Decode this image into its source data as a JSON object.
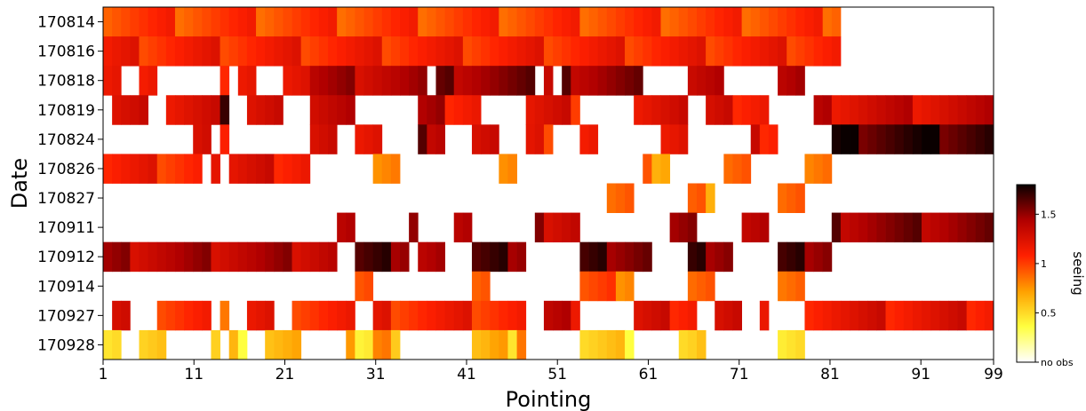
{
  "chart_data": {
    "type": "heatmap",
    "title": "",
    "xlabel": "Pointing",
    "ylabel": "Date",
    "x_tick_labels": [
      "1",
      "11",
      "21",
      "31",
      "41",
      "51",
      "61",
      "71",
      "81",
      "91",
      "99"
    ],
    "x_tick_values": [
      1,
      11,
      21,
      31,
      41,
      51,
      61,
      71,
      81,
      91,
      99
    ],
    "xlim": [
      1,
      99
    ],
    "rows": [
      "170814",
      "170816",
      "170818",
      "170819",
      "170824",
      "170826",
      "170827",
      "170911",
      "170912",
      "170914",
      "170927",
      "170928"
    ],
    "columns_count": 99,
    "colorbar": {
      "label": "seeing",
      "ticks": [
        {
          "value": 0,
          "label": "no obs"
        },
        {
          "value": 0.5,
          "label": "0.5"
        },
        {
          "value": 1,
          "label": "1"
        },
        {
          "value": 1.5,
          "label": "1.5"
        }
      ],
      "vmin": 0,
      "vmax": 1.8,
      "colormap": "hot_r"
    },
    "values": [
      {
        "date": "170814",
        "segments": [
          [
            1,
            82,
            1.0
          ]
        ]
      },
      {
        "date": "170816",
        "segments": [
          [
            1,
            82,
            1.1
          ]
        ]
      },
      {
        "date": "170818",
        "segments": [
          [
            1,
            2,
            1.3
          ],
          [
            5,
            6,
            1.2
          ],
          [
            14,
            14,
            1.2
          ],
          [
            16,
            17,
            1.3
          ],
          [
            21,
            23,
            1.2
          ],
          [
            24,
            36,
            1.4
          ],
          [
            38,
            48,
            1.5
          ],
          [
            50,
            50,
            1.2
          ],
          [
            52,
            60,
            1.5
          ],
          [
            66,
            69,
            1.4
          ],
          [
            76,
            78,
            1.5
          ]
        ]
      },
      {
        "date": "170819",
        "segments": [
          [
            2,
            5,
            1.2
          ],
          [
            8,
            13,
            1.3
          ],
          [
            14,
            14,
            1.7
          ],
          [
            17,
            20,
            1.2
          ],
          [
            24,
            28,
            1.4
          ],
          [
            36,
            38,
            1.5
          ],
          [
            39,
            42,
            1.1
          ],
          [
            48,
            52,
            1.3
          ],
          [
            53,
            53,
            1.0
          ],
          [
            60,
            65,
            1.3
          ],
          [
            68,
            74,
            1.2
          ],
          [
            80,
            99,
            1.3
          ]
        ]
      },
      {
        "date": "170824",
        "segments": [
          [
            11,
            12,
            1.4
          ],
          [
            14,
            14,
            1.2
          ],
          [
            24,
            26,
            1.4
          ],
          [
            29,
            31,
            1.2
          ],
          [
            36,
            38,
            1.5
          ],
          [
            42,
            44,
            1.3
          ],
          [
            48,
            50,
            1.1
          ],
          [
            54,
            55,
            1.2
          ],
          [
            63,
            65,
            1.3
          ],
          [
            73,
            75,
            1.2
          ],
          [
            82,
            99,
            1.7
          ]
        ]
      },
      {
        "date": "170826",
        "segments": [
          [
            1,
            11,
            1.1
          ],
          [
            13,
            13,
            1.2
          ],
          [
            15,
            23,
            1.2
          ],
          [
            31,
            33,
            0.9
          ],
          [
            45,
            46,
            0.8
          ],
          [
            61,
            63,
            0.8
          ],
          [
            70,
            72,
            0.8
          ],
          [
            79,
            81,
            0.8
          ]
        ]
      },
      {
        "date": "170827",
        "segments": [
          [
            57,
            59,
            1.0
          ],
          [
            66,
            68,
            0.8
          ],
          [
            76,
            78,
            0.8
          ]
        ]
      },
      {
        "date": "170911",
        "segments": [
          [
            27,
            28,
            1.5
          ],
          [
            35,
            35,
            1.4
          ],
          [
            40,
            41,
            1.5
          ],
          [
            49,
            53,
            1.4
          ],
          [
            64,
            66,
            1.5
          ],
          [
            72,
            74,
            1.5
          ],
          [
            82,
            99,
            1.5
          ]
        ]
      },
      {
        "date": "170912",
        "segments": [
          [
            1,
            26,
            1.4
          ],
          [
            29,
            34,
            1.6
          ],
          [
            36,
            38,
            1.5
          ],
          [
            42,
            47,
            1.6
          ],
          [
            54,
            61,
            1.6
          ],
          [
            66,
            70,
            1.6
          ],
          [
            76,
            81,
            1.6
          ]
        ]
      },
      {
        "date": "170914",
        "segments": [
          [
            29,
            30,
            1.0
          ],
          [
            42,
            43,
            0.9
          ],
          [
            54,
            59,
            0.9
          ],
          [
            66,
            68,
            0.8
          ],
          [
            76,
            78,
            0.8
          ]
        ]
      },
      {
        "date": "170927",
        "segments": [
          [
            2,
            3,
            1.2
          ],
          [
            7,
            12,
            1.1
          ],
          [
            14,
            14,
            0.8
          ],
          [
            17,
            19,
            1.1
          ],
          [
            22,
            28,
            1.1
          ],
          [
            31,
            47,
            1.1
          ],
          [
            50,
            53,
            1.3
          ],
          [
            60,
            66,
            1.2
          ],
          [
            69,
            71,
            1.3
          ],
          [
            74,
            74,
            1.1
          ],
          [
            79,
            99,
            1.2
          ]
        ]
      },
      {
        "date": "170928",
        "segments": [
          [
            1,
            2,
            0.6
          ],
          [
            5,
            7,
            0.6
          ],
          [
            13,
            13,
            0.4
          ],
          [
            15,
            16,
            0.5
          ],
          [
            19,
            22,
            0.7
          ],
          [
            28,
            28,
            0.6
          ],
          [
            29,
            30,
            0.3
          ],
          [
            31,
            33,
            0.7
          ],
          [
            42,
            43,
            0.5
          ],
          [
            44,
            46,
            0.6
          ],
          [
            47,
            47,
            0.7
          ],
          [
            54,
            59,
            0.5
          ],
          [
            65,
            66,
            0.5
          ],
          [
            67,
            67,
            0.6
          ],
          [
            76,
            78,
            0.5
          ]
        ]
      }
    ]
  }
}
